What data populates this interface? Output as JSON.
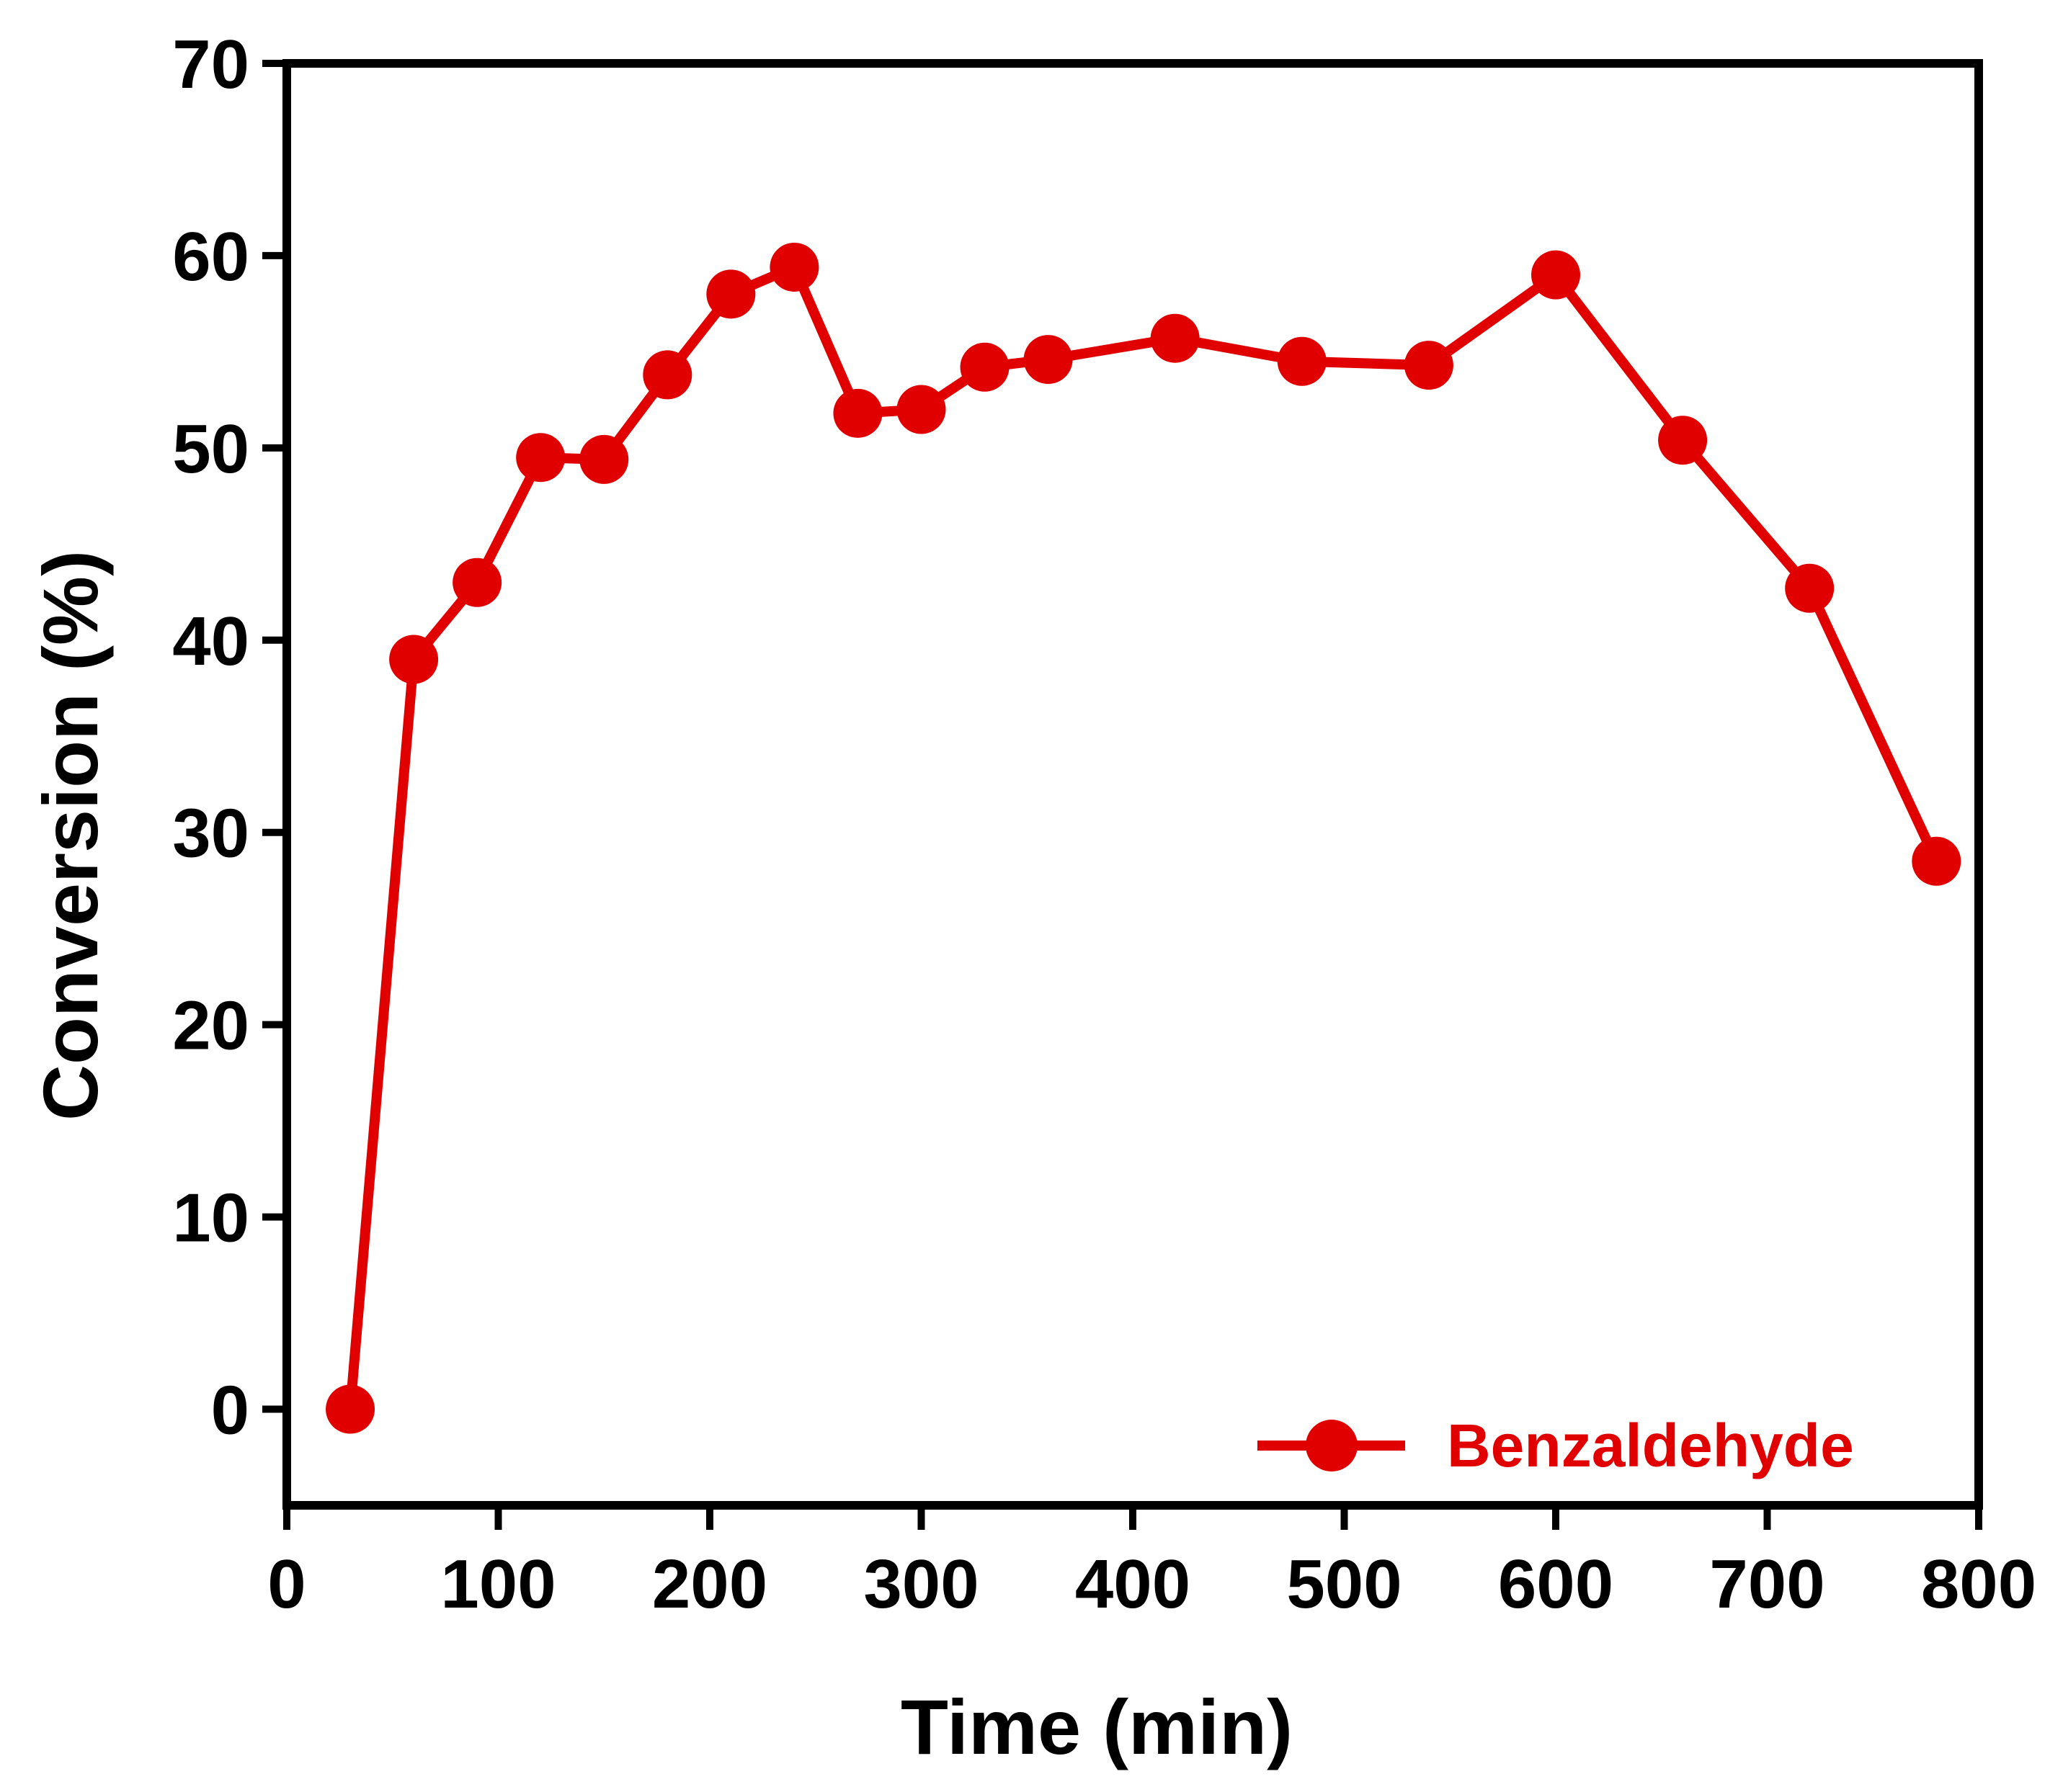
{
  "chart_data": {
    "type": "line",
    "title": "",
    "xlabel": "Time (min)",
    "ylabel": "Conversion (%)",
    "xlim": [
      0,
      800
    ],
    "ylim": [
      -5,
      70
    ],
    "xticks": [
      0,
      100,
      200,
      300,
      400,
      500,
      600,
      700,
      800
    ],
    "yticks": [
      0,
      10,
      20,
      30,
      40,
      50,
      60,
      70
    ],
    "grid": false,
    "legend_position": "bottom-right",
    "series": [
      {
        "name": "Benzaldehyde",
        "color": "#e00000",
        "marker": "circle",
        "x": [
          30,
          60,
          90,
          120,
          150,
          180,
          210,
          240,
          270,
          300,
          330,
          360,
          420,
          480,
          540,
          600,
          660,
          720,
          780
        ],
        "y": [
          0,
          39,
          43,
          49.5,
          49.4,
          53.8,
          58,
          59.4,
          51.8,
          52,
          54.2,
          54.6,
          55.7,
          54.5,
          54.3,
          59,
          50.4,
          42.7,
          28.5
        ]
      }
    ]
  }
}
